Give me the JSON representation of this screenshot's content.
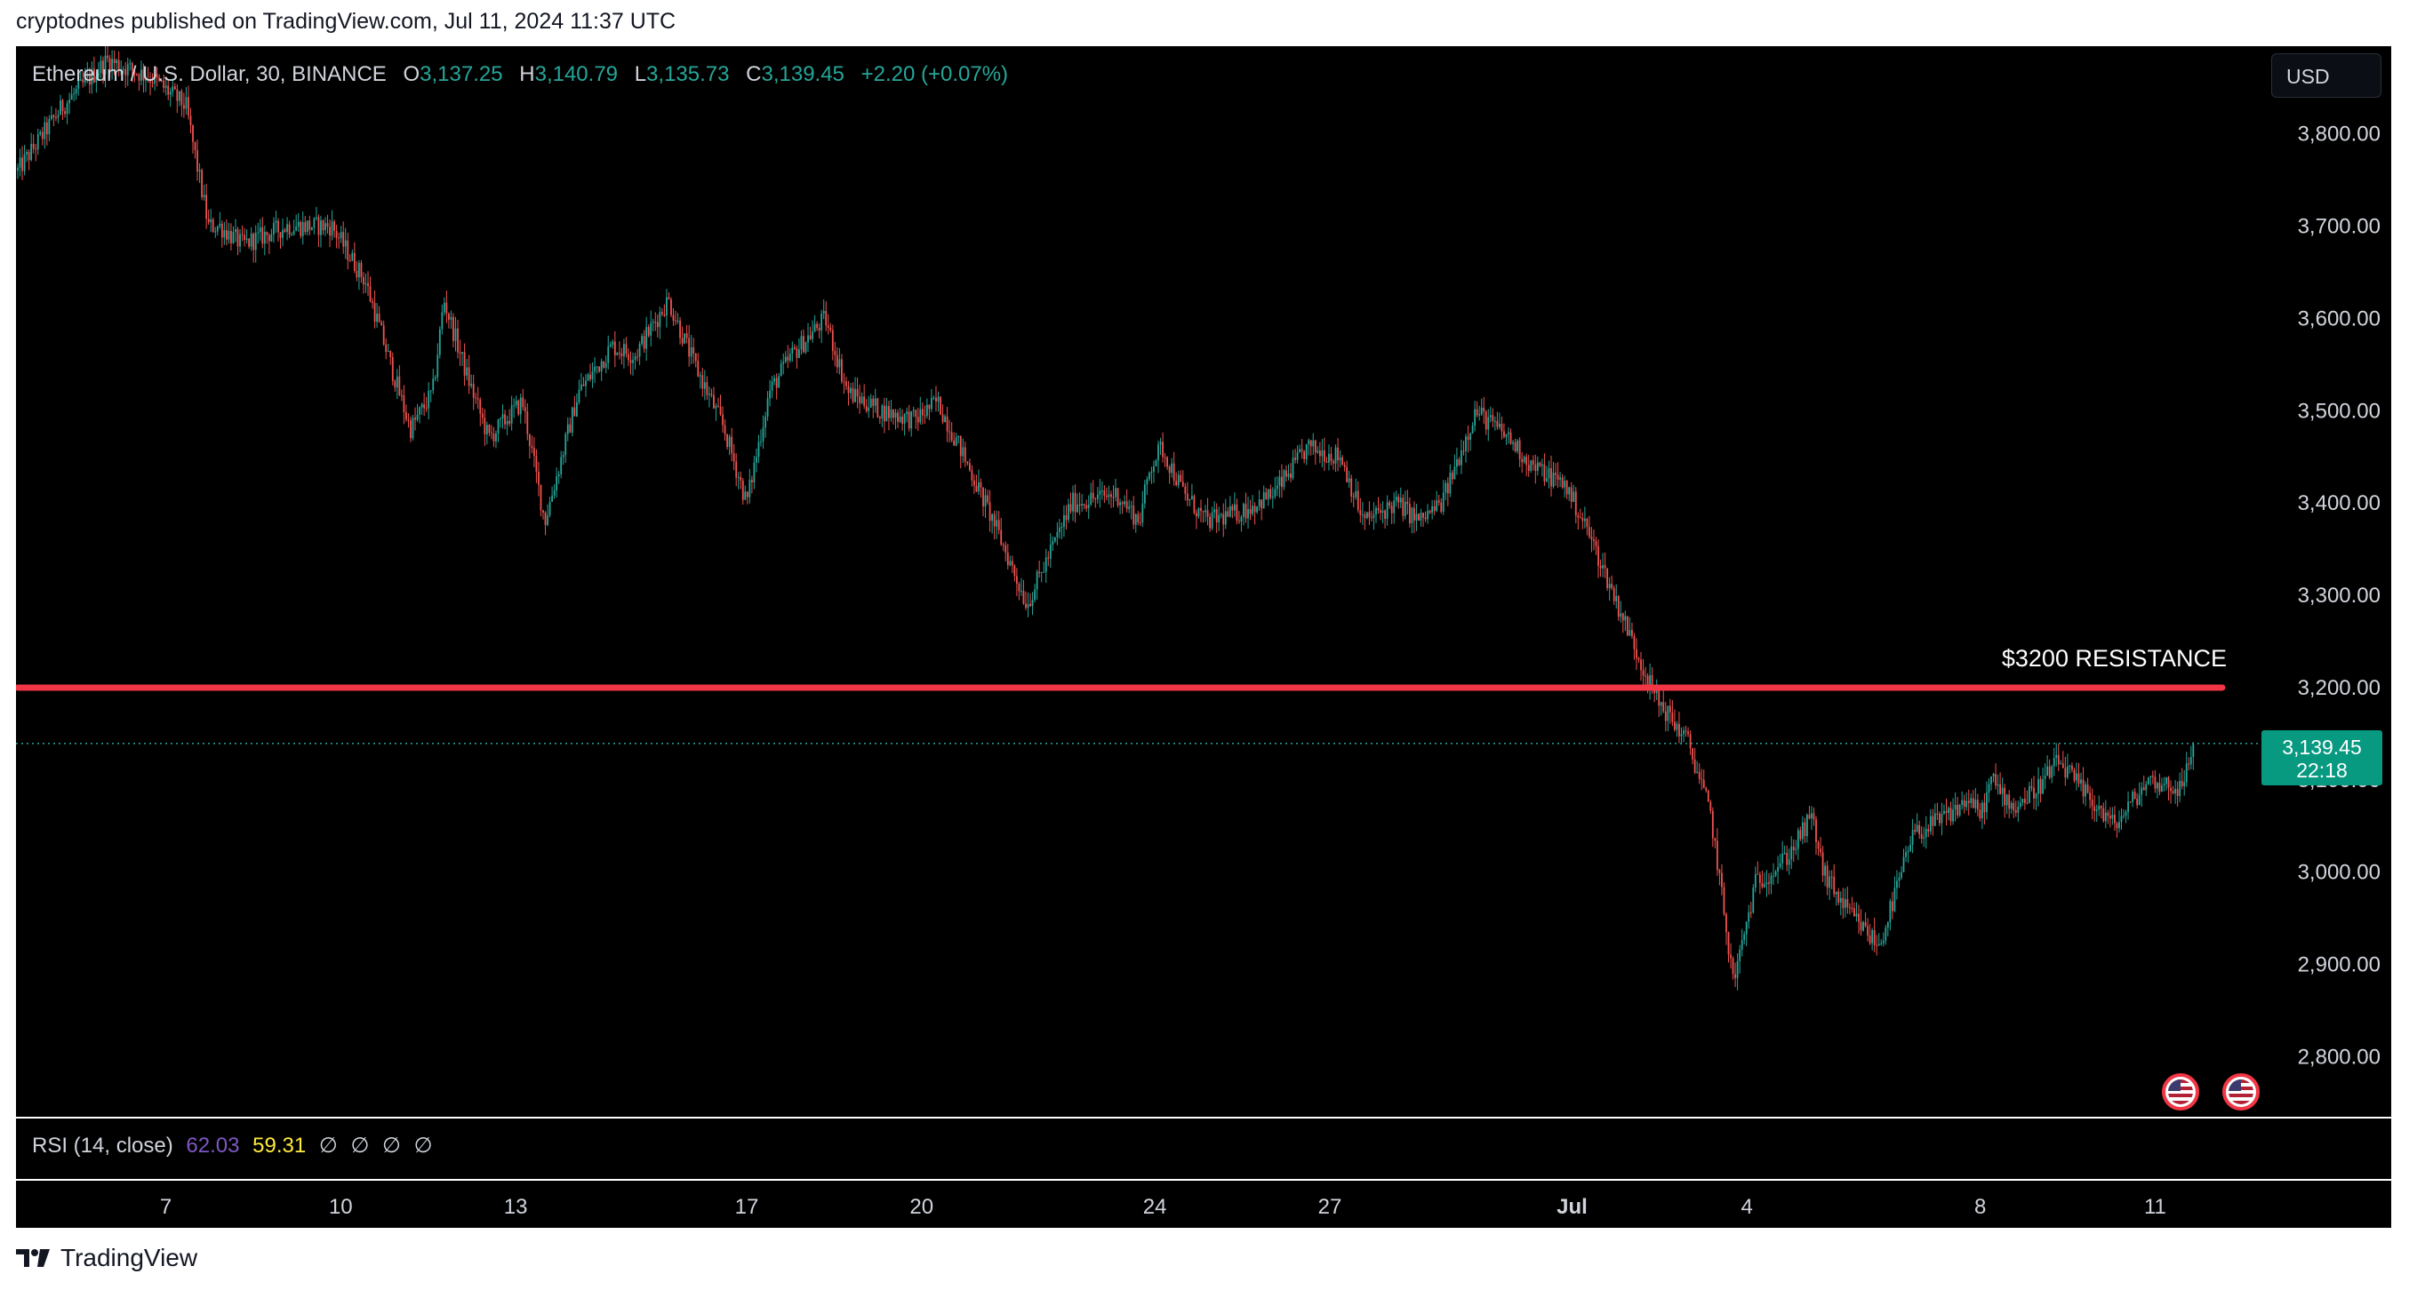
{
  "header": {
    "published": "cryptodnes published on TradingView.com, Jul 11, 2024 11:37 UTC"
  },
  "legend": {
    "symbol": "Ethereum / U.S. Dollar, 30, BINANCE",
    "o_label": "O",
    "o": "3,137.25",
    "h_label": "H",
    "h": "3,140.79",
    "l_label": "L",
    "l": "3,135.73",
    "c_label": "C",
    "c": "3,139.45",
    "change": "+2.20 (+0.07%)"
  },
  "currency": "USD",
  "price_tag": {
    "price": "3,139.45",
    "countdown": "22:18"
  },
  "annotation": "$3200 RESISTANCE",
  "rsi": {
    "label": "RSI (14, close)",
    "v1": "62.03",
    "v2": "59.31",
    "na": [
      "∅",
      "∅",
      "∅",
      "∅"
    ]
  },
  "footer": {
    "logo_text": "TradingView"
  },
  "colors": {
    "up": "#26a69a",
    "down": "#ef5350",
    "resistance": "#f23645",
    "background": "#000000"
  },
  "chart_data": {
    "type": "candlestick",
    "title": "Ethereum / U.S. Dollar, 30, BINANCE",
    "ylim": [
      2735,
      3895
    ],
    "y_ticks": [
      "3,800.00",
      "3,700.00",
      "3,600.00",
      "3,500.00",
      "3,400.00",
      "3,300.00",
      "3,200.00",
      "3,100.00",
      "3,000.00",
      "2,900.00",
      "2,800.00"
    ],
    "y_tick_values": [
      3800,
      3700,
      3600,
      3500,
      3400,
      3300,
      3200,
      3100,
      3000,
      2900,
      2800
    ],
    "x_ticks": [
      "7",
      "10",
      "13",
      "17",
      "20",
      "24",
      "27",
      "Jul",
      "4",
      "8",
      "11"
    ],
    "x_tick_index": [
      0.066,
      0.144,
      0.222,
      0.325,
      0.403,
      0.507,
      0.585,
      0.693,
      0.771,
      0.875,
      0.953
    ],
    "last_price": 3139.45,
    "resistance_level": 3200,
    "resistance_label": "$3200 RESISTANCE",
    "series": [
      {
        "index": [
          0,
          0.02,
          0.04,
          0.06,
          0.075,
          0.085,
          0.09,
          0.1,
          0.12,
          0.14,
          0.155,
          0.165,
          0.175,
          0.185,
          0.19,
          0.2,
          0.21,
          0.225,
          0.235,
          0.25,
          0.265,
          0.275,
          0.29,
          0.3,
          0.315,
          0.325,
          0.335,
          0.345,
          0.36,
          0.37,
          0.385,
          0.4,
          0.41,
          0.42,
          0.435,
          0.45,
          0.47,
          0.49,
          0.5,
          0.505,
          0.51,
          0.52,
          0.53,
          0.545,
          0.56,
          0.575,
          0.59,
          0.6,
          0.615,
          0.625,
          0.635,
          0.65,
          0.665,
          0.675,
          0.69,
          0.7,
          0.715,
          0.73,
          0.745,
          0.755,
          0.765,
          0.775,
          0.782,
          0.79,
          0.795,
          0.8,
          0.805,
          0.815,
          0.83,
          0.845,
          0.86,
          0.87,
          0.875,
          0.88,
          0.89,
          0.9,
          0.91,
          0.92,
          0.935,
          0.95,
          0.965,
          0.97
        ],
        "close": [
          3760,
          3830,
          3880,
          3860,
          3830,
          3700,
          3700,
          3680,
          3700,
          3700,
          3640,
          3560,
          3480,
          3520,
          3620,
          3540,
          3470,
          3510,
          3380,
          3520,
          3570,
          3560,
          3620,
          3560,
          3480,
          3400,
          3520,
          3560,
          3600,
          3520,
          3500,
          3490,
          3510,
          3460,
          3380,
          3290,
          3400,
          3410,
          3380,
          3440,
          3460,
          3410,
          3380,
          3390,
          3410,
          3460,
          3450,
          3380,
          3400,
          3380,
          3400,
          3500,
          3470,
          3440,
          3420,
          3370,
          3280,
          3190,
          3140,
          3060,
          2880,
          2990,
          3000,
          3020,
          3040,
          3060,
          3000,
          2960,
          2920,
          3040,
          3060,
          3080,
          3060,
          3100,
          3070,
          3090,
          3120,
          3090,
          3050,
          3100,
          3090,
          3139
        ]
      }
    ]
  }
}
